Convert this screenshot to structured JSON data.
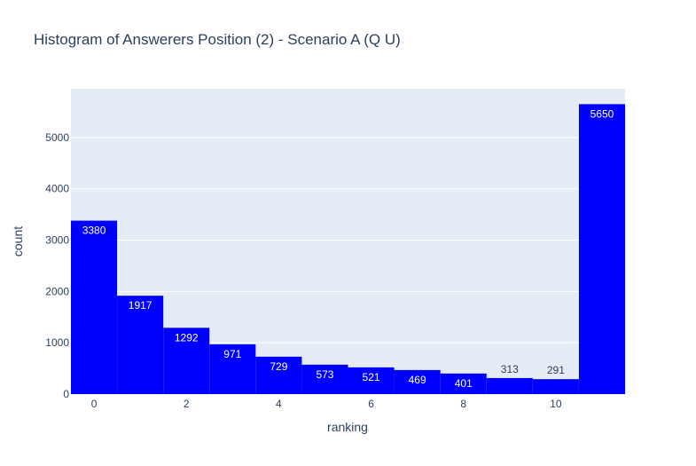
{
  "chart_data": {
    "type": "bar",
    "title": "Histogram of Answerers Position (2) - Scenario A (Q U)",
    "xlabel": "ranking",
    "ylabel": "count",
    "bins": [
      {
        "x0": -0.5,
        "x1": 0.5,
        "value": 3380
      },
      {
        "x0": 0.5,
        "x1": 1.5,
        "value": 1917
      },
      {
        "x0": 1.5,
        "x1": 2.5,
        "value": 1292
      },
      {
        "x0": 2.5,
        "x1": 3.5,
        "value": 971
      },
      {
        "x0": 3.5,
        "x1": 4.5,
        "value": 729
      },
      {
        "x0": 4.5,
        "x1": 5.5,
        "value": 573
      },
      {
        "x0": 5.5,
        "x1": 6.5,
        "value": 521
      },
      {
        "x0": 6.5,
        "x1": 7.5,
        "value": 469
      },
      {
        "x0": 7.5,
        "x1": 8.5,
        "value": 401
      },
      {
        "x0": 8.5,
        "x1": 9.5,
        "value": 313
      },
      {
        "x0": 9.5,
        "x1": 10.5,
        "value": 291
      },
      {
        "x0": 10.5,
        "x1": 11.5,
        "value": 5650
      }
    ],
    "xlim": [
      -0.5,
      11.5
    ],
    "ylim": [
      0,
      5950
    ],
    "xticks": [
      0,
      2,
      4,
      6,
      8,
      10
    ],
    "yticks": [
      0,
      1000,
      2000,
      3000,
      4000,
      5000
    ],
    "grid": true,
    "colors": {
      "bar": "#0000ff",
      "plot_bg": "#e5ecf6",
      "grid": "#ffffff",
      "text": "#2a3f5f",
      "label_inside": "#ffffff",
      "label_outside": "#2a3f5f"
    }
  }
}
